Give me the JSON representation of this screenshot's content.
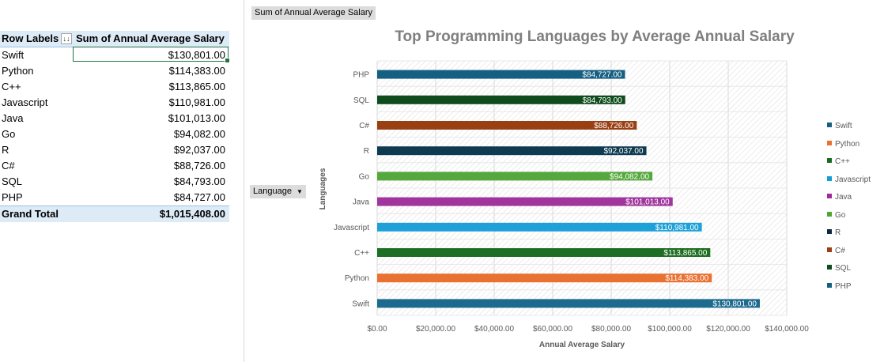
{
  "pivot": {
    "header_label": "Row Labels",
    "header_value": "Sum of Annual Average Salary",
    "filter_icon": "sort-filter-icon",
    "rows": [
      {
        "label": "Swift",
        "value": "$130,801.00"
      },
      {
        "label": "Python",
        "value": "$114,383.00"
      },
      {
        "label": "C++",
        "value": "$113,865.00"
      },
      {
        "label": "Javascript",
        "value": "$110,981.00"
      },
      {
        "label": "Java",
        "value": "$101,013.00"
      },
      {
        "label": "Go",
        "value": "$94,082.00"
      },
      {
        "label": "R",
        "value": "$92,037.00"
      },
      {
        "label": "C#",
        "value": "$88,726.00"
      },
      {
        "label": "SQL",
        "value": "$84,793.00"
      },
      {
        "label": "PHP",
        "value": "$84,727.00"
      }
    ],
    "total_label": "Grand Total",
    "total_value": "$1,015,408.00"
  },
  "field_buttons": {
    "value_field": "Sum of Annual Average Salary",
    "axis_field": "Language",
    "axis_field_icon": "dropdown-arrow-icon"
  },
  "chart_data": {
    "type": "bar",
    "orientation": "horizontal",
    "title": "Top Programming Languages by Average Annual Salary",
    "xlabel": "Annual Average Salary",
    "ylabel": "Languages",
    "xlim": [
      0,
      140000
    ],
    "x_ticks": [
      0,
      20000,
      40000,
      60000,
      80000,
      100000,
      120000,
      140000
    ],
    "x_tick_labels": [
      "$0.00",
      "$20,000.00",
      "$40,000.00",
      "$60,000.00",
      "$80,000.00",
      "$100,000.00",
      "$120,000.00",
      "$140,000.00"
    ],
    "grid": true,
    "legend_position": "right",
    "categories": [
      "PHP",
      "SQL",
      "C#",
      "R",
      "Go",
      "Java",
      "Javascript",
      "C++",
      "Python",
      "Swift"
    ],
    "values": [
      84727,
      84793,
      88726,
      92037,
      94082,
      101013,
      110981,
      113865,
      114383,
      130801
    ],
    "data_labels": [
      "$84,727.00",
      "$84,793.00",
      "$88,726.00",
      "$92,037.00",
      "$94,082.00",
      "$101,013.00",
      "$110,981.00",
      "$113,865.00",
      "$114,383.00",
      "$130,801.00"
    ],
    "colors": [
      "#156082",
      "#0f4c1d",
      "#9a3f12",
      "#0e3a52",
      "#55a83d",
      "#a0359d",
      "#1da1d8",
      "#1e6e23",
      "#e97132",
      "#1c6a8e"
    ],
    "legend": [
      {
        "name": "Swift",
        "color": "#156082"
      },
      {
        "name": "Python",
        "color": "#e97132"
      },
      {
        "name": "C++",
        "color": "#196b24"
      },
      {
        "name": "Javascript",
        "color": "#0f9ed5"
      },
      {
        "name": "Java",
        "color": "#a02b93"
      },
      {
        "name": "Go",
        "color": "#4ea72e"
      },
      {
        "name": "R",
        "color": "#0e2841"
      },
      {
        "name": "C#",
        "color": "#9a3f12"
      },
      {
        "name": "SQL",
        "color": "#0f4c1d"
      },
      {
        "name": "PHP",
        "color": "#156082"
      }
    ]
  }
}
